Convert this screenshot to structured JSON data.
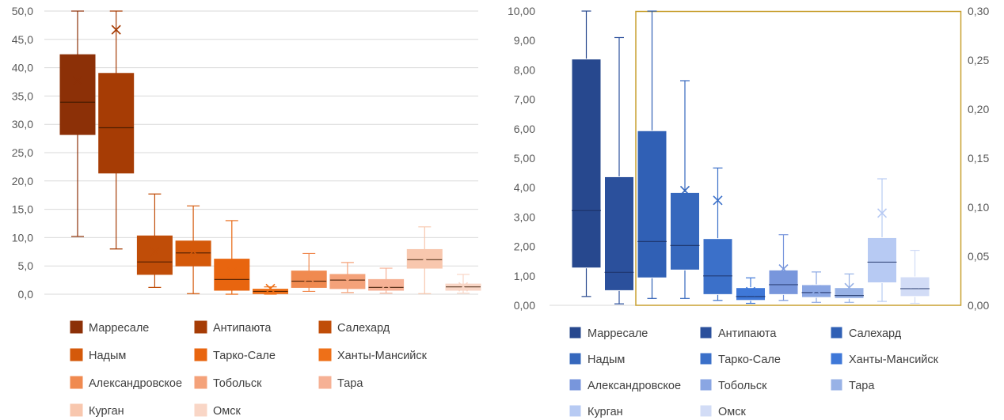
{
  "chart_data": [
    {
      "type": "box",
      "title": "",
      "xlabel": "",
      "ylabel": "",
      "ylim": [
        0,
        50
      ],
      "yticks": [
        "0,0",
        "5,0",
        "10,0",
        "15,0",
        "20,0",
        "25,0",
        "30,0",
        "35,0",
        "40,0",
        "45,0",
        "50,0"
      ],
      "grid": true,
      "legend_position": "bottom",
      "series": [
        {
          "name": "Марресале",
          "color": "#8c3007",
          "min": 10.2,
          "q1": 28.2,
          "median": 33.9,
          "q3": 42.3,
          "max": 50.0,
          "mean": 37.7
        },
        {
          "name": "Антипаюта",
          "color": "#a63c05",
          "min": 8.0,
          "q1": 21.4,
          "median": 29.4,
          "q3": 39.0,
          "max": 50.0,
          "mean": 46.7
        },
        {
          "name": "Салехард",
          "color": "#c04d08",
          "min": 1.2,
          "q1": 3.5,
          "median": 5.7,
          "q3": 10.3,
          "max": 17.7,
          "mean": 7.5
        },
        {
          "name": "Надым",
          "color": "#d4590a",
          "min": 0.1,
          "q1": 5.0,
          "median": 7.3,
          "q3": 9.4,
          "max": 15.6,
          "mean": 7.6
        },
        {
          "name": "Тарко-Сале",
          "color": "#e8650f",
          "min": 0.0,
          "q1": 0.7,
          "median": 2.6,
          "q3": 6.2,
          "max": 13.0,
          "mean": 3.9
        },
        {
          "name": "Ханты-Мансийск",
          "color": "#ee7018",
          "min": 0.0,
          "q1": 0.1,
          "median": 0.5,
          "q3": 0.9,
          "max": 1.3,
          "mean": 1.0
        },
        {
          "name": "Александровское",
          "color": "#f08a50",
          "min": 0.5,
          "q1": 1.2,
          "median": 2.3,
          "q3": 4.1,
          "max": 7.2,
          "mean": 3.0
        },
        {
          "name": "Тобольск",
          "color": "#f4a27a",
          "min": 0.3,
          "q1": 1.0,
          "median": 2.5,
          "q3": 3.5,
          "max": 5.6,
          "mean": 2.4
        },
        {
          "name": "Тара",
          "color": "#f6b195",
          "min": 0.2,
          "q1": 0.7,
          "median": 1.2,
          "q3": 2.6,
          "max": 4.6,
          "mean": 1.7
        },
        {
          "name": "Курган",
          "color": "#f8c7ae",
          "min": 0.1,
          "q1": 4.6,
          "median": 6.1,
          "q3": 7.9,
          "max": 11.9,
          "mean": 6.2
        },
        {
          "name": "Омск",
          "color": "#f9d6c6",
          "min": 0.2,
          "q1": 0.7,
          "median": 1.3,
          "q3": 1.8,
          "max": 3.5,
          "mean": 1.3
        }
      ]
    },
    {
      "type": "box",
      "title": "",
      "xlabel": "",
      "ylabel": "",
      "ylim": [
        0,
        10
      ],
      "yticks": [
        "0,00",
        "1,00",
        "2,00",
        "3,00",
        "4,00",
        "5,00",
        "6,00",
        "7,00",
        "8,00",
        "9,00",
        "10,00"
      ],
      "y2lim": [
        0,
        0.3
      ],
      "y2ticks": [
        "0,00",
        "0,05",
        "0,10",
        "0,15",
        "0,20",
        "0,25",
        "0,30"
      ],
      "grid": false,
      "legend_position": "bottom",
      "series": [
        {
          "name": "Марресале",
          "axis": "left",
          "color": "#27488e",
          "min": 0.3,
          "q1": 1.27,
          "median": 3.22,
          "q3": 8.37,
          "max": 10.0,
          "mean": null
        },
        {
          "name": "Антипаюта",
          "axis": "left",
          "color": "#2b509c",
          "min": 0.05,
          "q1": 0.5,
          "median": 1.12,
          "q3": 4.37,
          "max": 9.1,
          "mean": null
        },
        {
          "name": "Салехард",
          "axis": "right",
          "color": "#3060b5",
          "min": 0.007,
          "q1": 0.028,
          "median": 0.065,
          "q3": 0.178,
          "max": 0.3,
          "mean": null
        },
        {
          "name": "Надым",
          "axis": "right",
          "color": "#3668bd",
          "min": 0.007,
          "q1": 0.036,
          "median": 0.061,
          "q3": 0.115,
          "max": 0.229,
          "mean": 0.117
        },
        {
          "name": "Тарко-Сале",
          "axis": "right",
          "color": "#3b70c9",
          "min": 0.005,
          "q1": 0.011,
          "median": 0.03,
          "q3": 0.068,
          "max": 0.14,
          "mean": 0.107
        },
        {
          "name": "Ханты-Мансийск",
          "axis": "right",
          "color": "#3f78d8",
          "min": 0.002,
          "q1": 0.005,
          "median": 0.009,
          "q3": 0.018,
          "max": 0.028,
          "mean": 0.014
        },
        {
          "name": "Александровское",
          "axis": "right",
          "color": "#7896dc",
          "min": 0.005,
          "q1": 0.011,
          "median": 0.021,
          "q3": 0.036,
          "max": 0.072,
          "mean": 0.037
        },
        {
          "name": "Тобольск",
          "axis": "right",
          "color": "#8aa6e3",
          "min": 0.003,
          "q1": 0.008,
          "median": 0.013,
          "q3": 0.021,
          "max": 0.034,
          "mean": 0.016
        },
        {
          "name": "Тара",
          "axis": "right",
          "color": "#98b2e6",
          "min": 0.003,
          "q1": 0.007,
          "median": 0.01,
          "q3": 0.018,
          "max": 0.032,
          "mean": 0.018
        },
        {
          "name": "Курган",
          "axis": "right",
          "color": "#b7caf3",
          "min": 0.004,
          "q1": 0.023,
          "median": 0.044,
          "q3": 0.069,
          "max": 0.129,
          "mean": 0.094
        },
        {
          "name": "Омск",
          "axis": "right",
          "color": "#d2dcf6",
          "min": 0.002,
          "q1": 0.009,
          "median": 0.017,
          "q3": 0.029,
          "max": 0.056,
          "mean": 0.022
        }
      ]
    }
  ]
}
